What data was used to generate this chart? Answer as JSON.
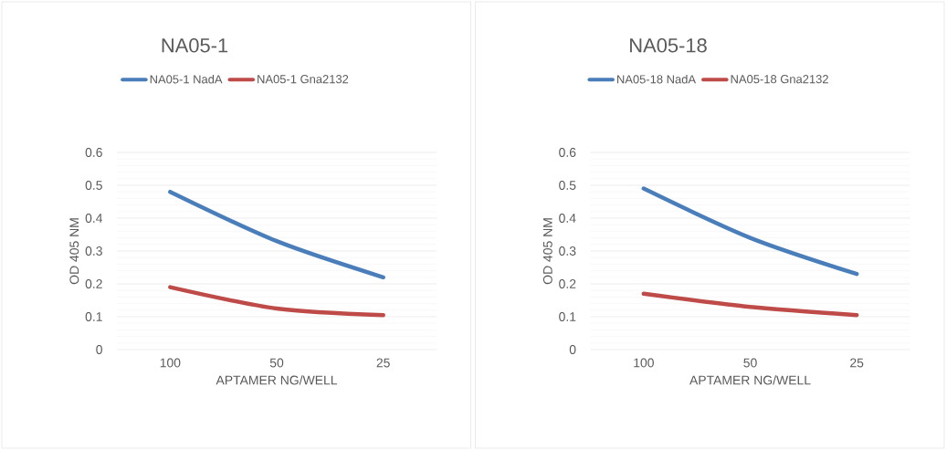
{
  "chart_data": [
    {
      "type": "line",
      "title": "NA05-1",
      "xlabel": "APTAMER NG/WELL",
      "ylabel": "OD 405 NM",
      "categories": [
        "100",
        "50",
        "25"
      ],
      "series": [
        {
          "name": "NA05-1 NadA",
          "color": "#4a7ebb",
          "values": [
            0.48,
            0.33,
            0.22
          ]
        },
        {
          "name": "NA05-1 Gna2132",
          "color": "#be4b48",
          "values": [
            0.19,
            0.125,
            0.105
          ]
        }
      ],
      "ylim": [
        0,
        0.6
      ],
      "yticks": [
        0,
        0.1,
        0.2,
        0.3,
        0.4,
        0.5,
        0.6
      ],
      "grid": "y",
      "legend": "top",
      "marker": "none",
      "line_style": "solid"
    },
    {
      "type": "line",
      "title": "NA05-18",
      "xlabel": "APTAMER NG/WELL",
      "ylabel": "OD 405 NM",
      "categories": [
        "100",
        "50",
        "25"
      ],
      "series": [
        {
          "name": "NA05-18 NadA",
          "color": "#4a7ebb",
          "values": [
            0.49,
            0.34,
            0.23
          ]
        },
        {
          "name": "NA05-18 Gna2132",
          "color": "#be4b48",
          "values": [
            0.17,
            0.13,
            0.105
          ]
        }
      ],
      "ylim": [
        0,
        0.6
      ],
      "yticks": [
        0,
        0.1,
        0.2,
        0.3,
        0.4,
        0.5,
        0.6
      ],
      "grid": "y",
      "legend": "top",
      "marker": "none",
      "line_style": "solid"
    }
  ]
}
